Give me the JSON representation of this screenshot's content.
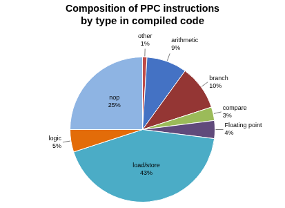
{
  "chart_data": {
    "type": "pie",
    "title": "Composition of PPC instructions\nby type in compiled code",
    "categories": [
      "other",
      "arithmetic",
      "branch",
      "compare",
      "Floating point",
      "load/store",
      "logic",
      "nop"
    ],
    "values": [
      1,
      9,
      10,
      3,
      4,
      43,
      5,
      25
    ],
    "value_labels": [
      "1%",
      "9%",
      "10%",
      "3%",
      "4%",
      "43%",
      "5%",
      "25%"
    ],
    "colors": [
      "#be4b48",
      "#4472c4",
      "#943634",
      "#9bbb59",
      "#604a7b",
      "#4bacc6",
      "#e36c09",
      "#8eb4e3"
    ],
    "data_labels": true
  }
}
